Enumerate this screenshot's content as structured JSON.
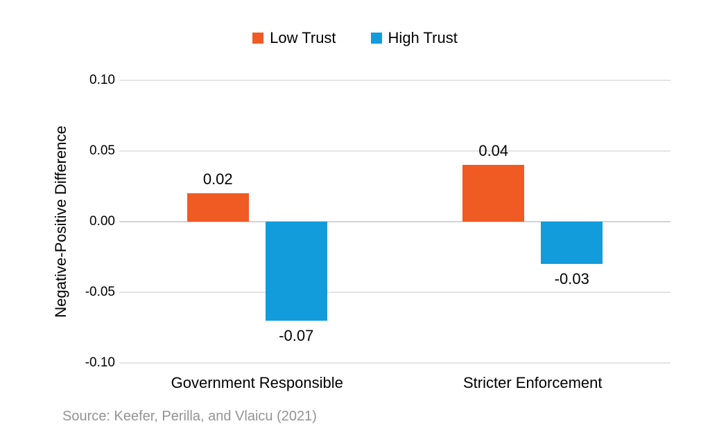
{
  "chart_data": {
    "type": "bar",
    "title": "",
    "xlabel": "",
    "ylabel": "Negative-Positive Difference",
    "ylim": [
      -0.1,
      0.1
    ],
    "grid": "horizontal-gridlines",
    "legend_position": "top-center",
    "yticks": [
      {
        "value": 0.1,
        "label": "0.10"
      },
      {
        "value": 0.05,
        "label": "0.05"
      },
      {
        "value": 0.0,
        "label": "0.00"
      },
      {
        "value": -0.05,
        "label": "-0.05"
      },
      {
        "value": -0.1,
        "label": "-0.10"
      }
    ],
    "categories": [
      "Government Responsible",
      "Stricter Enforcement"
    ],
    "series": [
      {
        "name": "Low Trust",
        "color": "#F05A23",
        "values": [
          0.02,
          0.04
        ],
        "value_labels": [
          "0.02",
          "0.04"
        ]
      },
      {
        "name": "High Trust",
        "color": "#129CDB",
        "values": [
          -0.07,
          -0.03
        ],
        "value_labels": [
          "-0.07",
          "-0.03"
        ]
      }
    ]
  },
  "source_note": "Source: Keefer, Perilla, and Vlaicu (2021)",
  "colors": {
    "low_trust": "#F05A23",
    "high_trust": "#129CDB",
    "gridline": "#E4E4E4",
    "zero_line": "#D2D2D2",
    "source_text": "#939393"
  }
}
